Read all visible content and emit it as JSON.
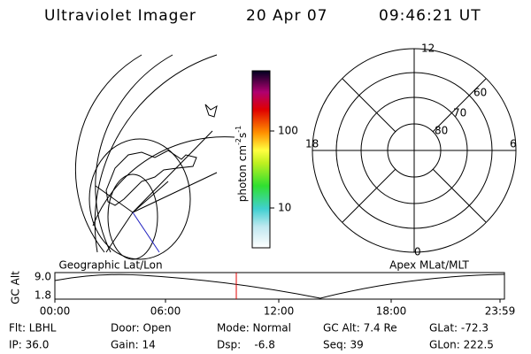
{
  "header": {
    "instrument": "Ultraviolet Imager",
    "date": "20 Apr 07",
    "time": "09:46:21 UT"
  },
  "colorbar": {
    "label": [
      "photon cm",
      "-2",
      "s",
      "-1"
    ],
    "ticks": [
      "100",
      "10"
    ]
  },
  "polar": {
    "labels": [
      "12",
      "18",
      "6",
      "0",
      "60",
      "70",
      "80"
    ]
  },
  "panels": {
    "left": "Geographic Lat/Lon",
    "right": "Apex MLat/MLT"
  },
  "timeline": {
    "ylabel": "GC Alt",
    "yticks": [
      "9.0",
      "1.8"
    ],
    "xticks": [
      "00:00",
      "06:00",
      "12:00",
      "18:00",
      "23:59"
    ]
  },
  "footer": [
    [
      "Flt: LBHL",
      "IP: 36.0"
    ],
    [
      "Door: Open",
      "Gain: 14"
    ],
    [
      "Mode: Normal",
      "Dsp:    -6.8"
    ],
    [
      "GC Alt: 7.4 Re",
      "Seq: 39"
    ],
    [
      "GLat: -72.3",
      "GLon: 222.5"
    ]
  ]
}
